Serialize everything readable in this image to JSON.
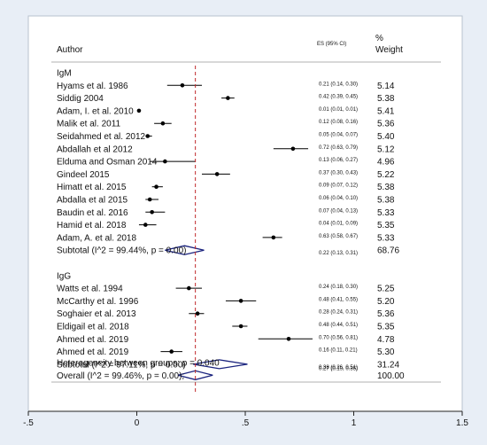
{
  "header": {
    "author": "Author",
    "es": "ES (95% CI)",
    "pct": "%",
    "weight": "Weight"
  },
  "groups": [
    {
      "label": "IgM",
      "rows": [
        {
          "study": "Hyams et al. 1986",
          "es": 0.21,
          "lo": 0.14,
          "hi": 0.3,
          "ci": "0.21 (0.14, 0.30)",
          "weight": "5.14"
        },
        {
          "study": "Siddig 2004",
          "es": 0.42,
          "lo": 0.39,
          "hi": 0.45,
          "ci": "0.42 (0.39, 0.45)",
          "weight": "5.38"
        },
        {
          "study": "Adam, I. et al. 2010",
          "es": 0.01,
          "lo": 0.01,
          "hi": 0.01,
          "ci": "0.01 (0.01, 0.01)",
          "weight": "5.41"
        },
        {
          "study": "Malik et al. 2011",
          "es": 0.12,
          "lo": 0.08,
          "hi": 0.16,
          "ci": "0.12 (0.08, 0.16)",
          "weight": "5.36"
        },
        {
          "study": "Seidahmed et al. 2012",
          "es": 0.05,
          "lo": 0.04,
          "hi": 0.07,
          "ci": "0.05 (0.04, 0.07)",
          "weight": "5.40"
        },
        {
          "study": "Abdallah et al 2012",
          "es": 0.72,
          "lo": 0.63,
          "hi": 0.79,
          "ci": "0.72 (0.63, 0.79)",
          "weight": "5.12"
        },
        {
          "study": "Elduma and Osman 2014",
          "es": 0.13,
          "lo": 0.06,
          "hi": 0.27,
          "ci": "0.13 (0.06, 0.27)",
          "weight": "4.96"
        },
        {
          "study": "Gindeel 2015",
          "es": 0.37,
          "lo": 0.3,
          "hi": 0.43,
          "ci": "0.37 (0.30, 0.43)",
          "weight": "5.22"
        },
        {
          "study": "Himatt et al. 2015",
          "es": 0.09,
          "lo": 0.07,
          "hi": 0.12,
          "ci": "0.09 (0.07, 0.12)",
          "weight": "5.38"
        },
        {
          "study": "Abdalla et al 2015",
          "es": 0.06,
          "lo": 0.04,
          "hi": 0.1,
          "ci": "0.06 (0.04, 0.10)",
          "weight": "5.38"
        },
        {
          "study": "Baudin et al. 2016",
          "es": 0.07,
          "lo": 0.04,
          "hi": 0.13,
          "ci": "0.07 (0.04, 0.13)",
          "weight": "5.33"
        },
        {
          "study": "Hamid et al. 2018",
          "es": 0.04,
          "lo": 0.01,
          "hi": 0.09,
          "ci": "0.04 (0.01, 0.09)",
          "weight": "5.35"
        },
        {
          "study": "Adam, A. et al. 2018",
          "es": 0.63,
          "lo": 0.58,
          "hi": 0.67,
          "ci": "0.63 (0.58, 0.67)",
          "weight": "5.33"
        }
      ],
      "subtotal": {
        "label": "Subtotal  (I^2 = 99.44%, p = 0.00)",
        "es": 0.22,
        "lo": 0.13,
        "hi": 0.31,
        "ci": "0.22 (0.13, 0.31)",
        "weight": "68.76"
      }
    },
    {
      "label": "IgG",
      "rows": [
        {
          "study": "Watts et al. 1994",
          "es": 0.24,
          "lo": 0.18,
          "hi": 0.3,
          "ci": "0.24 (0.18, 0.30)",
          "weight": "5.25"
        },
        {
          "study": "McCarthy et al. 1996",
          "es": 0.48,
          "lo": 0.41,
          "hi": 0.55,
          "ci": "0.48 (0.41, 0.55)",
          "weight": "5.20"
        },
        {
          "study": "Soghaier et al. 2013",
          "es": 0.28,
          "lo": 0.24,
          "hi": 0.31,
          "ci": "0.28 (0.24, 0.31)",
          "weight": "5.36"
        },
        {
          "study": "Eldigail et al. 2018",
          "es": 0.48,
          "lo": 0.44,
          "hi": 0.51,
          "ci": "0.48 (0.44, 0.51)",
          "weight": "5.35"
        },
        {
          "study": "Ahmed et al. 2019",
          "es": 0.7,
          "lo": 0.56,
          "hi": 0.81,
          "ci": "0.70 (0.56, 0.81)",
          "weight": "4.78"
        },
        {
          "study": "Ahmed et al. 2019",
          "es": 0.16,
          "lo": 0.11,
          "hi": 0.21,
          "ci": "0.16 (0.11, 0.21)",
          "weight": "5.30"
        }
      ],
      "subtotal": {
        "label": "Subtotal  (I^2 = 97.11%, p = 0.00)",
        "es": 0.38,
        "lo": 0.26,
        "hi": 0.51,
        "ci": "0.38 (0.26, 0.51)",
        "weight": "31.24"
      }
    }
  ],
  "heterogeneity": "Heterogeneity between groups: p = 0.040",
  "overall": {
    "label": "Overall  (I^2 = 99.46%, p = 0.00);",
    "es": 0.27,
    "lo": 0.19,
    "hi": 0.35,
    "ci": "0.27 (0.19, 0.35)",
    "weight": "100.00"
  },
  "colors": {
    "reference_line": "#c0292b",
    "diamond": "#1a237e",
    "ci_line": "#000000"
  },
  "chart_data": {
    "type": "forest",
    "xlim": [
      -0.5,
      1.5
    ],
    "ticks": [
      {
        "v": -0.5,
        "label": "-.5"
      },
      {
        "v": 0,
        "label": "0"
      },
      {
        "v": 0.5,
        "label": ".5"
      },
      {
        "v": 1,
        "label": "1"
      },
      {
        "v": 1.5,
        "label": "1.5"
      }
    ],
    "reference_value": 0.27
  }
}
